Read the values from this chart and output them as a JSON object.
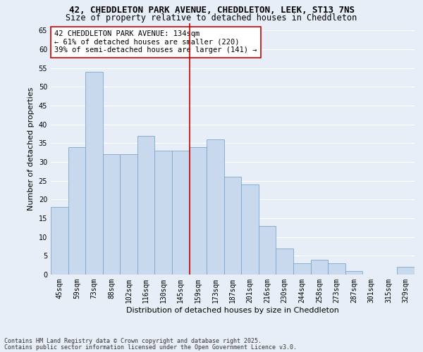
{
  "title": "42, CHEDDLETON PARK AVENUE, CHEDDLETON, LEEK, ST13 7NS",
  "subtitle": "Size of property relative to detached houses in Cheddleton",
  "xlabel": "Distribution of detached houses by size in Cheddleton",
  "ylabel": "Number of detached properties",
  "categories": [
    "45sqm",
    "59sqm",
    "73sqm",
    "88sqm",
    "102sqm",
    "116sqm",
    "130sqm",
    "145sqm",
    "159sqm",
    "173sqm",
    "187sqm",
    "201sqm",
    "216sqm",
    "230sqm",
    "244sqm",
    "258sqm",
    "273sqm",
    "287sqm",
    "301sqm",
    "315sqm",
    "329sqm"
  ],
  "values": [
    18,
    34,
    54,
    32,
    32,
    37,
    33,
    33,
    34,
    36,
    26,
    24,
    13,
    7,
    3,
    4,
    3,
    1,
    0,
    0,
    2
  ],
  "bar_color": "#c9d9ed",
  "bar_edge_color": "#7ba7cc",
  "red_line_index": 7,
  "annotation_line1": "42 CHEDDLETON PARK AVENUE: 134sqm",
  "annotation_line2": "← 61% of detached houses are smaller (220)",
  "annotation_line3": "39% of semi-detached houses are larger (141) →",
  "annotation_box_color": "#ffffff",
  "annotation_border_color": "#cc0000",
  "ylim": [
    0,
    67
  ],
  "yticks": [
    0,
    5,
    10,
    15,
    20,
    25,
    30,
    35,
    40,
    45,
    50,
    55,
    60,
    65
  ],
  "background_color": "#e8eef7",
  "grid_color": "#ffffff",
  "footer_line1": "Contains HM Land Registry data © Crown copyright and database right 2025.",
  "footer_line2": "Contains public sector information licensed under the Open Government Licence v3.0.",
  "title_fontsize": 9,
  "subtitle_fontsize": 8.5,
  "axis_label_fontsize": 8,
  "tick_fontsize": 7,
  "annotation_fontsize": 7.5,
  "footer_fontsize": 6
}
